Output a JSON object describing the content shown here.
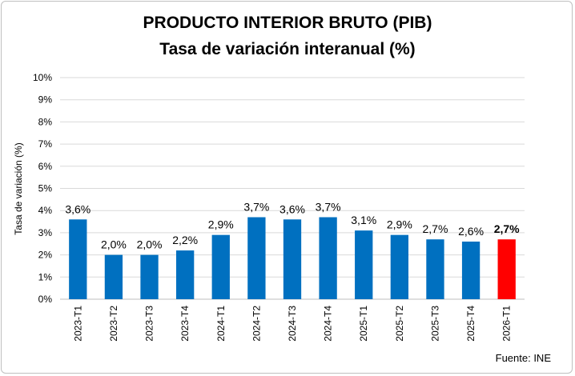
{
  "chart_data": {
    "type": "bar",
    "title": "PRODUCTO INTERIOR BRUTO (PIB)",
    "subtitle": "Tasa de variación interanual (%)",
    "ylabel": "Tasa de variación (%)",
    "xlabel": "",
    "ylim": [
      0,
      10
    ],
    "yticks": [
      "0%",
      "1%",
      "2%",
      "3%",
      "4%",
      "5%",
      "6%",
      "7%",
      "8%",
      "9%",
      "10%"
    ],
    "grid": true,
    "categories": [
      "2023-T1",
      "2023-T2",
      "2023-T3",
      "2023-T4",
      "2024-T1",
      "2024-T2",
      "2024-T3",
      "2024-T4",
      "2025-T1",
      "2025-T2",
      "2025-T3",
      "2025-T4",
      "2026-T1"
    ],
    "values": [
      3.6,
      2.0,
      2.0,
      2.2,
      2.9,
      3.7,
      3.6,
      3.7,
      3.1,
      2.9,
      2.7,
      2.6,
      2.7
    ],
    "data_labels": [
      "3,6%",
      "2,0%",
      "2,0%",
      "2,2%",
      "2,9%",
      "3,7%",
      "3,6%",
      "3,7%",
      "3,1%",
      "2,9%",
      "2,7%",
      "2,6%",
      "2,7%"
    ],
    "highlight_index": 12,
    "colors": {
      "bar": "#0070c0",
      "highlight": "#ff0000",
      "grid": "#d9d9d9",
      "frame": "#bfbfbf"
    }
  },
  "source": "Fuente: INE"
}
